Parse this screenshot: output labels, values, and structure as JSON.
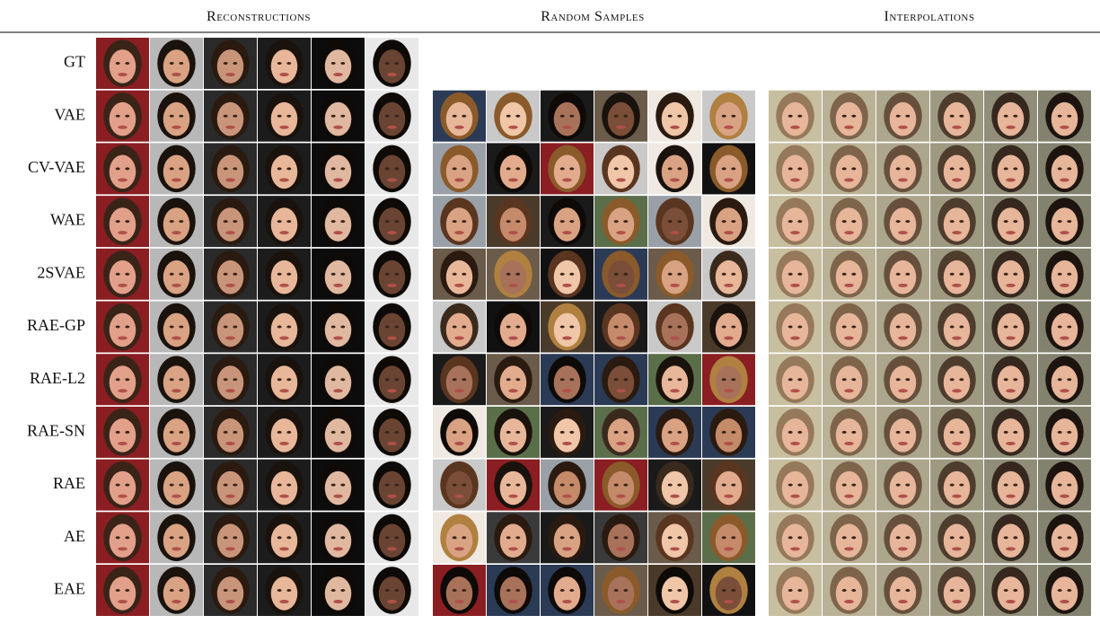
{
  "header": {
    "columns": [
      "Reconstructions",
      "Random Samples",
      "Interpolations"
    ]
  },
  "rows": [
    "GT",
    "VAE",
    "CV-VAE",
    "WAE",
    "2SVAE",
    "RAE-GP",
    "RAE-L2",
    "RAE-SN",
    "RAE",
    "AE",
    "EAE"
  ]
}
